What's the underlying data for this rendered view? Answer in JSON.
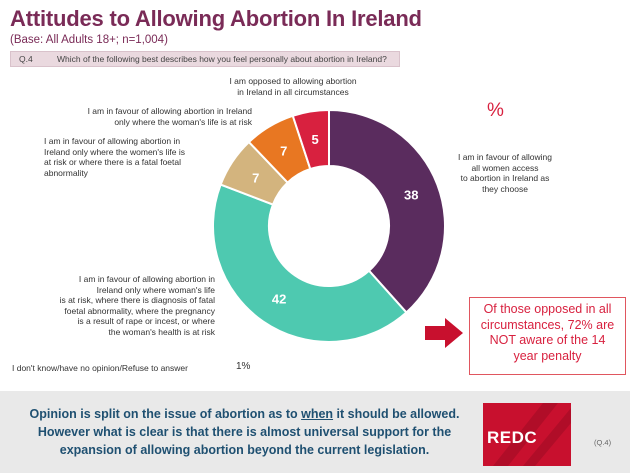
{
  "header": {
    "title": "Attitudes to Allowing Abortion In Ireland",
    "base": "(Base: All Adults 18+; n=1,004)",
    "question_number": "Q.4",
    "question_text": "Which of the following best describes how you feel personally about abortion in Ireland?"
  },
  "percent_sign": "%",
  "chart_data": {
    "type": "pie",
    "title": "Attitudes to Allowing Abortion In Ireland",
    "unit": "%",
    "slices": [
      {
        "label": "I am in favour of allowing all women access to abortion in Ireland as they choose",
        "value": 38,
        "color": "#5a2c5e"
      },
      {
        "label": "I am in favour of allowing abortion in Ireland only where woman's life is at risk, where there is diagnosis of fatal foetal abnormality, where the pregnancy is a result of rape or incest, or where the woman's health is at risk",
        "value": 42,
        "color": "#4ec9b0"
      },
      {
        "label": "I am in favour of allowing abortion in Ireland only where the women's life is at risk or where there is a fatal foetal abnormality",
        "value": 7,
        "color": "#d3b47e"
      },
      {
        "label": "I am in favour of allowing abortion in Ireland only where the woman's life is at risk",
        "value": 7,
        "color": "#e87722"
      },
      {
        "label": "I am opposed to allowing abortion in Ireland in all circumstances",
        "value": 5,
        "color": "#d8213f"
      }
    ],
    "excluded": {
      "label": "I don't know/have no opinion/Refuse to answer",
      "value": 1
    }
  },
  "labels": {
    "opposed_line1": "I am opposed to allowing abortion",
    "opposed_line2": "in Ireland in all circumstances",
    "life_risk_line1": "I am in favour of allowing abortion in Ireland",
    "life_risk_line2": "only where the woman's life is at risk",
    "fatal_line1": "I am in favour of allowing abortion in",
    "fatal_line2": "Ireland only where the women's life is",
    "fatal_line3": "at risk or where there is a fatal foetal",
    "fatal_line4": "abnormality",
    "all_line1": "I am in favour of allowing",
    "all_line2": "all women access",
    "all_line3": "to abortion in Ireland as",
    "all_line4": "they choose",
    "health_line1": "I am in favour of allowing abortion in",
    "health_line2": "Ireland only where woman's life",
    "health_line3": "is at risk, where there is diagnosis of fatal",
    "health_line4": "foetal abnormality, where the pregnancy",
    "health_line5": "is a result of rape or incest, or where",
    "health_line6": "the woman's health is at risk",
    "dont_know": "I don't know/have no opinion/Refuse to answer",
    "dont_know_value": "1%"
  },
  "callout": {
    "line1": "Of those opposed in all",
    "line2": "circumstances, 72% are",
    "line3": "NOT aware of the 14",
    "line4": "year penalty"
  },
  "conclusion": {
    "part1": "Opinion is split on the issue of abortion as to ",
    "emphasis": "when",
    "part2": " it should be allowed. However what is clear is that there is almost universal support for the expansion of allowing abortion beyond the current legislation."
  },
  "logo": {
    "text": "REDC"
  },
  "question_ref": "(Q.4)"
}
